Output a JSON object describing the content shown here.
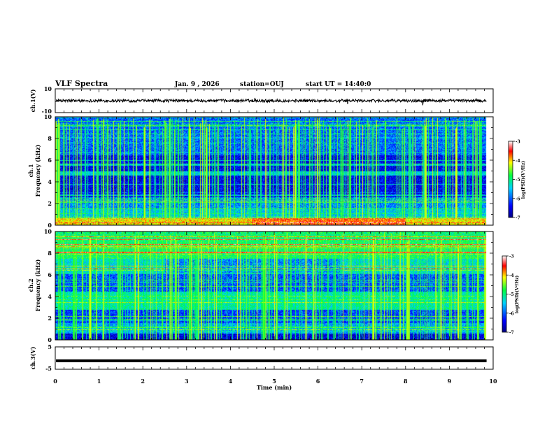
{
  "header": {
    "title": "VLF Spectra",
    "date": "Jan. 9 , 2026",
    "station": "station=OUJ",
    "start_ut": "start UT =  14:40:0"
  },
  "colors": {
    "frame": "#000000",
    "background": "#ffffff"
  },
  "chart_data": [
    {
      "type": "line",
      "name": "ch1-waveform",
      "ylabel": "ch.1(V)",
      "ylim": [
        -10,
        10
      ],
      "yticks": [
        "10",
        "-10"
      ],
      "baseline": 0,
      "xlim": [
        0,
        10
      ]
    },
    {
      "type": "heatmap",
      "name": "ch1-spectrogram",
      "ylabel_channel": "ch.1",
      "ylabel": "Frequency (kHz)",
      "ylim": [
        0,
        10
      ],
      "yticks": [
        "0",
        "2",
        "4",
        "6",
        "8",
        "10"
      ],
      "xlim": [
        0,
        10
      ],
      "data_end_min": 9.85,
      "colorbar": {
        "label": "log(PSD)(V²/Hz)",
        "range": [
          -7,
          -3
        ],
        "ticks": [
          "-3",
          "-4",
          "-5",
          "-6",
          "-7"
        ]
      }
    },
    {
      "type": "heatmap",
      "name": "ch2-spectrogram",
      "ylabel_channel": "ch.2",
      "ylabel": "Frequency (kHz)",
      "ylim": [
        0,
        10
      ],
      "yticks": [
        "0",
        "2",
        "4",
        "6",
        "8",
        "10"
      ],
      "xlim": [
        0,
        10
      ],
      "data_end_min": 9.85,
      "colorbar": {
        "label": "log(PSD)(V²/Hz)",
        "range": [
          -7,
          -3
        ],
        "ticks": [
          "-3",
          "-4",
          "-5",
          "-6",
          "-7"
        ]
      }
    },
    {
      "type": "line",
      "name": "ch3-waveform",
      "ylabel": "ch.3(V)",
      "ylim": [
        -5,
        5
      ],
      "yticks": [
        "5",
        "0",
        "-5"
      ],
      "baseline": -1.2,
      "xlim": [
        0,
        10
      ],
      "xlabel": "Time (min)",
      "xticks": [
        "0",
        "1",
        "2",
        "3",
        "4",
        "5",
        "6",
        "7",
        "8",
        "9",
        "10"
      ]
    }
  ]
}
